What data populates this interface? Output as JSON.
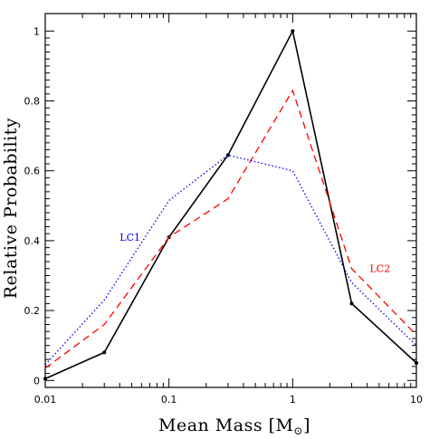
{
  "chart_data": {
    "type": "line",
    "title": "",
    "xlabel": "Mean Mass [M",
    "xlabel_sub": "⊙",
    "xlabel_close": "]",
    "ylabel": "Relative Probability",
    "xscale": "log",
    "xlim": [
      0.01,
      10
    ],
    "ylim": [
      -0.02,
      1.05
    ],
    "x_ticks": [
      {
        "value": 0.01,
        "label": "0.01"
      },
      {
        "value": 0.1,
        "label": "0.1"
      },
      {
        "value": 1,
        "label": "1"
      },
      {
        "value": 10,
        "label": "10"
      }
    ],
    "y_ticks": [
      {
        "value": 0,
        "label": "0"
      },
      {
        "value": 0.2,
        "label": "0.2"
      },
      {
        "value": 0.4,
        "label": "0.4"
      },
      {
        "value": 0.6,
        "label": "0.6"
      },
      {
        "value": 0.8,
        "label": "0.8"
      },
      {
        "value": 1,
        "label": "1"
      }
    ],
    "grid": false,
    "series": [
      {
        "key": "black",
        "color": "#000000",
        "style": "solid",
        "markers": true,
        "x": [
          0.01,
          0.03,
          0.1,
          0.3,
          1,
          3,
          10
        ],
        "y": [
          0.005,
          0.08,
          0.41,
          0.645,
          1.0,
          0.22,
          0.05
        ]
      },
      {
        "key": "lc2",
        "name": "LC2",
        "color": "#ff0000",
        "style": "dashed",
        "markers": false,
        "x": [
          0.01,
          0.03,
          0.1,
          0.3,
          1,
          3,
          10
        ],
        "y": [
          0.035,
          0.16,
          0.41,
          0.52,
          0.83,
          0.32,
          0.13
        ]
      },
      {
        "key": "lc1",
        "name": "LC1",
        "color": "#0000ff",
        "style": "dotted",
        "markers": false,
        "x": [
          0.01,
          0.03,
          0.1,
          0.3,
          1,
          3,
          10
        ],
        "y": [
          0.045,
          0.23,
          0.515,
          0.645,
          0.6,
          0.28,
          0.1
        ]
      }
    ],
    "annotations": [
      {
        "text": "LC1",
        "color": "#0000ff",
        "x": 0.04,
        "y": 0.4
      },
      {
        "text": "LC2",
        "color": "#ff0000",
        "x": 4.2,
        "y": 0.31
      }
    ]
  }
}
